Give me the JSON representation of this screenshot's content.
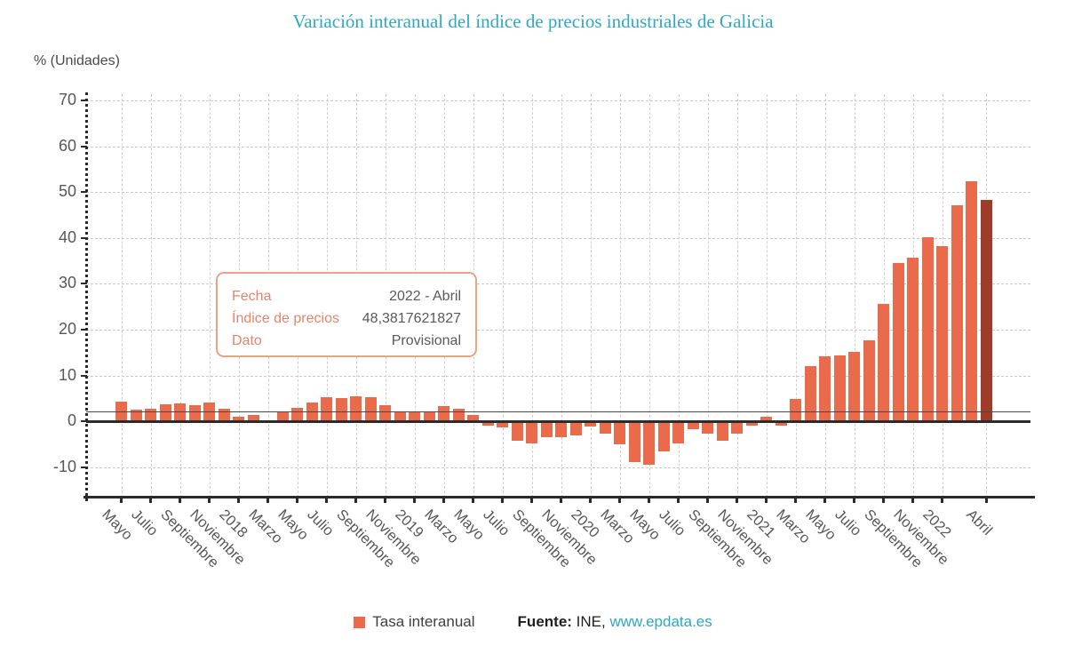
{
  "page_title": "Variación interanual del índice de precios industriales de Galicia",
  "y_axis_title": "% (Unidades)",
  "tooltip": {
    "rows": [
      {
        "label": "Fecha",
        "value": "2022 - Abril"
      },
      {
        "label": "Índice de precios",
        "value": "48,3817621827"
      },
      {
        "label": "Dato",
        "value": "Provisional"
      }
    ]
  },
  "footer": {
    "legend_label": "Tasa interanual",
    "source_label": "Fuente:",
    "source_name": "INE,",
    "source_link": "www.epdata.es"
  },
  "colors": {
    "bar": "#ea6a4c",
    "bar_highlight": "#9d3c28",
    "accent_teal": "#2da9c2",
    "tooltip_border": "#efa183",
    "tooltip_label": "#e5846b"
  },
  "chart_data": {
    "type": "bar",
    "title": "Variación interanual del índice de precios industriales de Galicia",
    "xlabel": "",
    "ylabel": "% (Unidades)",
    "ylim": [
      -16.6,
      70
    ],
    "y_ticks": [
      70,
      60,
      50,
      40,
      30,
      20,
      10,
      0,
      -10
    ],
    "grid": true,
    "legend_position": "bottom",
    "series_name": "Tasa interanual",
    "reference_line_y": 2.1,
    "highlight_last_bar": true,
    "values": [
      4.3,
      2.5,
      2.8,
      3.7,
      4.0,
      3.5,
      4.1,
      2.8,
      1.1,
      1.3,
      0.0,
      1.9,
      3.0,
      4.2,
      5.2,
      5.1,
      5.5,
      5.2,
      3.6,
      2.2,
      2.0,
      1.9,
      3.4,
      2.8,
      1.3,
      -0.9,
      -1.3,
      -4.2,
      -4.8,
      -3.4,
      -3.5,
      -3.1,
      -1.2,
      -2.6,
      -5.0,
      -8.8,
      -9.4,
      -6.5,
      -4.8,
      -1.7,
      -2.6,
      -4.3,
      -2.7,
      -1.0,
      1.0,
      -0.9,
      4.9,
      12.1,
      14.2,
      14.3,
      15.1,
      17.6,
      25.7,
      34.6,
      35.7,
      40.2,
      38.3,
      47.1,
      52.3,
      48.3817621827
    ],
    "x_ticks": [
      {
        "label": "Mayo",
        "bar": 0
      },
      {
        "label": "Julio",
        "bar": 2
      },
      {
        "label": "Septiembre",
        "bar": 4
      },
      {
        "label": "Noviembre",
        "bar": 6
      },
      {
        "label": "2018",
        "bar": 8
      },
      {
        "label": "Marzo",
        "bar": 10
      },
      {
        "label": "Mayo",
        "bar": 12
      },
      {
        "label": "Julio",
        "bar": 14
      },
      {
        "label": "Septiembre",
        "bar": 16
      },
      {
        "label": "Noviembre",
        "bar": 18
      },
      {
        "label": "2019",
        "bar": 20
      },
      {
        "label": "Marzo",
        "bar": 22
      },
      {
        "label": "Mayo",
        "bar": 24
      },
      {
        "label": "Julio",
        "bar": 26
      },
      {
        "label": "Septiembre",
        "bar": 28
      },
      {
        "label": "Noviembre",
        "bar": 30
      },
      {
        "label": "2020",
        "bar": 32
      },
      {
        "label": "Marzo",
        "bar": 34
      },
      {
        "label": "Mayo",
        "bar": 36
      },
      {
        "label": "Julio",
        "bar": 38
      },
      {
        "label": "Septiembre",
        "bar": 40
      },
      {
        "label": "Noviembre",
        "bar": 42
      },
      {
        "label": "2021",
        "bar": 44
      },
      {
        "label": "Marzo",
        "bar": 46
      },
      {
        "label": "Mayo",
        "bar": 48
      },
      {
        "label": "Julio",
        "bar": 50
      },
      {
        "label": "Septiembre",
        "bar": 52
      },
      {
        "label": "Noviembre",
        "bar": 54
      },
      {
        "label": "2022",
        "bar": 56
      },
      {
        "label": "Abril",
        "bar": 59
      }
    ]
  }
}
